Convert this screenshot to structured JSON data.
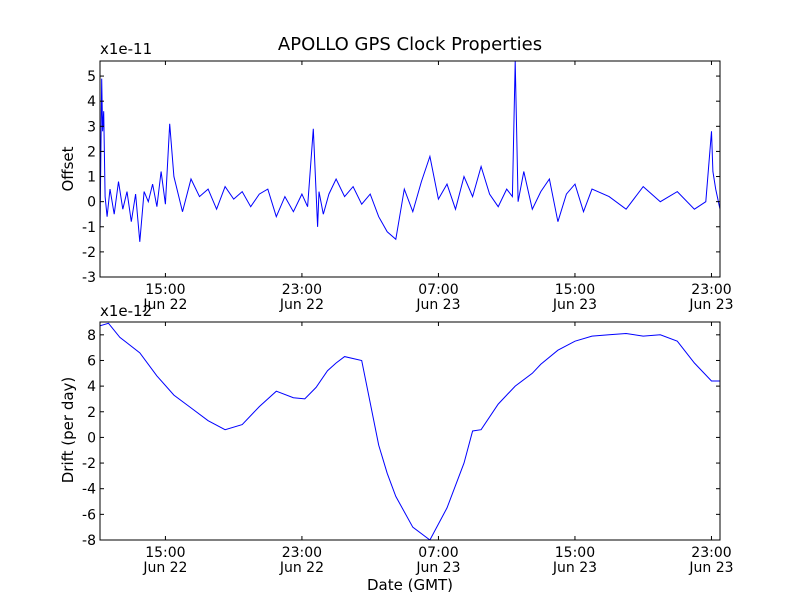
{
  "figure": {
    "title": "APOLLO GPS Clock Properties",
    "xlabel": "Date (GMT)",
    "line_color": "#0000ff"
  },
  "chart_data": [
    {
      "type": "line",
      "panel": "top",
      "ylabel": "Offset",
      "offset_text": "x1e-11",
      "y_scale_multiplier": 1e-11,
      "ylim": [
        -3,
        5.6
      ],
      "yticks": [
        -3,
        -2,
        -1,
        0,
        1,
        2,
        3,
        4,
        5
      ],
      "xlim": [
        "2022-06-22T11:10",
        "2022-06-23T23:30"
      ],
      "xticks": [
        {
          "value": "2022-06-22T15:00",
          "time": "15:00",
          "date": "Jun 22"
        },
        {
          "value": "2022-06-22T23:00",
          "time": "23:00",
          "date": "Jun 22"
        },
        {
          "value": "2022-06-23T07:00",
          "time": "07:00",
          "date": "Jun 23"
        },
        {
          "value": "2022-06-23T15:00",
          "time": "15:00",
          "date": "Jun 23"
        },
        {
          "value": "2022-06-23T23:00",
          "time": "23:00",
          "date": "Jun 23"
        }
      ],
      "series": [
        {
          "x": [
            "2022-06-22T11:10",
            "2022-06-22T11:16",
            "2022-06-22T11:19",
            "2022-06-22T11:23",
            "2022-06-22T11:28",
            "2022-06-22T11:35",
            "2022-06-22T11:45",
            "2022-06-22T12:00",
            "2022-06-22T12:15",
            "2022-06-22T12:30",
            "2022-06-22T12:45",
            "2022-06-22T13:00",
            "2022-06-22T13:15",
            "2022-06-22T13:30",
            "2022-06-22T13:45",
            "2022-06-22T14:00",
            "2022-06-22T14:15",
            "2022-06-22T14:30",
            "2022-06-22T14:45",
            "2022-06-22T15:00",
            "2022-06-22T15:15",
            "2022-06-22T15:30",
            "2022-06-22T15:45",
            "2022-06-22T16:00",
            "2022-06-22T16:30",
            "2022-06-22T17:00",
            "2022-06-22T17:30",
            "2022-06-22T18:00",
            "2022-06-22T18:30",
            "2022-06-22T19:00",
            "2022-06-22T19:30",
            "2022-06-22T20:00",
            "2022-06-22T20:30",
            "2022-06-22T21:00",
            "2022-06-22T21:30",
            "2022-06-22T22:00",
            "2022-06-22T22:30",
            "2022-06-22T23:00",
            "2022-06-22T23:20",
            "2022-06-22T23:40",
            "2022-06-22T23:55",
            "2022-06-23T00:00",
            "2022-06-23T00:15",
            "2022-06-23T00:35",
            "2022-06-23T01:00",
            "2022-06-23T01:30",
            "2022-06-23T02:00",
            "2022-06-23T02:30",
            "2022-06-23T03:00",
            "2022-06-23T03:30",
            "2022-06-23T04:00",
            "2022-06-23T04:30",
            "2022-06-23T05:00",
            "2022-06-23T05:30",
            "2022-06-23T06:00",
            "2022-06-23T06:30",
            "2022-06-23T07:00",
            "2022-06-23T07:30",
            "2022-06-23T08:00",
            "2022-06-23T08:30",
            "2022-06-23T09:00",
            "2022-06-23T09:30",
            "2022-06-23T10:00",
            "2022-06-23T10:30",
            "2022-06-23T11:00",
            "2022-06-23T11:20",
            "2022-06-23T11:30",
            "2022-06-23T11:40",
            "2022-06-23T12:00",
            "2022-06-23T12:30",
            "2022-06-23T13:00",
            "2022-06-23T13:30",
            "2022-06-23T14:00",
            "2022-06-23T14:30",
            "2022-06-23T15:00",
            "2022-06-23T15:30",
            "2022-06-23T16:00",
            "2022-06-23T17:00",
            "2022-06-23T18:00",
            "2022-06-23T19:00",
            "2022-06-23T20:00",
            "2022-06-23T21:00",
            "2022-06-23T22:00",
            "2022-06-23T22:40",
            "2022-06-23T23:00",
            "2022-06-23T23:05",
            "2022-06-23T23:15",
            "2022-06-23T23:30"
          ],
          "y": [
            -1.2,
            4.9,
            2.8,
            3.6,
            0.2,
            -0.6,
            0.5,
            -0.5,
            0.8,
            -0.3,
            0.4,
            -0.8,
            0.3,
            -1.6,
            0.4,
            0.0,
            0.7,
            -0.2,
            1.2,
            -0.1,
            3.1,
            1.0,
            0.3,
            -0.4,
            0.9,
            0.2,
            0.5,
            -0.3,
            0.6,
            0.1,
            0.4,
            -0.2,
            0.3,
            0.5,
            -0.6,
            0.2,
            -0.4,
            0.3,
            -0.2,
            2.9,
            -1.0,
            0.4,
            -0.5,
            0.3,
            0.9,
            0.2,
            0.6,
            -0.1,
            0.3,
            -0.6,
            -1.2,
            -1.5,
            0.5,
            -0.4,
            0.8,
            1.8,
            0.1,
            0.7,
            -0.3,
            1.0,
            0.2,
            1.4,
            0.3,
            -0.2,
            0.5,
            0.2,
            5.6,
            0.0,
            1.2,
            -0.3,
            0.4,
            0.9,
            -0.8,
            0.3,
            0.7,
            -0.4,
            0.5,
            0.2,
            -0.3,
            0.6,
            0.0,
            0.4,
            -0.3,
            0.0,
            2.8,
            1.2,
            0.5,
            -0.3
          ]
        }
      ]
    },
    {
      "type": "line",
      "panel": "bottom",
      "ylabel": "Drift (per day)",
      "offset_text": "x1e-12",
      "y_scale_multiplier": 1e-12,
      "ylim": [
        -8,
        9
      ],
      "yticks": [
        -8,
        -6,
        -4,
        -2,
        0,
        2,
        4,
        6,
        8
      ],
      "xlim": [
        "2022-06-22T11:10",
        "2022-06-23T23:30"
      ],
      "xticks": [
        {
          "value": "2022-06-22T15:00",
          "time": "15:00",
          "date": "Jun 22"
        },
        {
          "value": "2022-06-22T23:00",
          "time": "23:00",
          "date": "Jun 22"
        },
        {
          "value": "2022-06-23T07:00",
          "time": "07:00",
          "date": "Jun 23"
        },
        {
          "value": "2022-06-23T15:00",
          "time": "15:00",
          "date": "Jun 23"
        },
        {
          "value": "2022-06-23T23:00",
          "time": "23:00",
          "date": "Jun 23"
        }
      ],
      "series": [
        {
          "x": [
            "2022-06-22T11:10",
            "2022-06-22T11:40",
            "2022-06-22T12:20",
            "2022-06-22T13:30",
            "2022-06-22T14:30",
            "2022-06-22T15:30",
            "2022-06-22T16:30",
            "2022-06-22T17:30",
            "2022-06-22T18:30",
            "2022-06-22T19:30",
            "2022-06-22T20:30",
            "2022-06-22T21:30",
            "2022-06-22T22:30",
            "2022-06-22T23:10",
            "2022-06-22T23:50",
            "2022-06-23T00:30",
            "2022-06-23T01:00",
            "2022-06-23T01:30",
            "2022-06-23T02:30",
            "2022-06-23T03:30",
            "2022-06-23T04:00",
            "2022-06-23T04:30",
            "2022-06-23T05:30",
            "2022-06-23T06:30",
            "2022-06-23T07:30",
            "2022-06-23T08:30",
            "2022-06-23T09:00",
            "2022-06-23T09:30",
            "2022-06-23T10:30",
            "2022-06-23T11:30",
            "2022-06-23T12:30",
            "2022-06-23T13:00",
            "2022-06-23T14:00",
            "2022-06-23T15:00",
            "2022-06-23T16:00",
            "2022-06-23T17:00",
            "2022-06-23T18:00",
            "2022-06-23T19:00",
            "2022-06-23T20:00",
            "2022-06-23T21:00",
            "2022-06-23T22:00",
            "2022-06-23T23:00",
            "2022-06-23T23:30"
          ],
          "y": [
            8.7,
            8.9,
            7.8,
            6.6,
            4.8,
            3.3,
            2.3,
            1.3,
            0.6,
            1.0,
            2.4,
            3.6,
            3.1,
            3.0,
            3.9,
            5.2,
            5.8,
            6.3,
            6.0,
            -0.6,
            -2.8,
            -4.6,
            -7.0,
            -8.0,
            -5.5,
            -2.0,
            0.5,
            0.6,
            2.6,
            4.0,
            5.0,
            5.7,
            6.8,
            7.5,
            7.9,
            8.0,
            8.1,
            7.9,
            8.0,
            7.5,
            5.8,
            4.4,
            4.4
          ]
        }
      ]
    }
  ]
}
